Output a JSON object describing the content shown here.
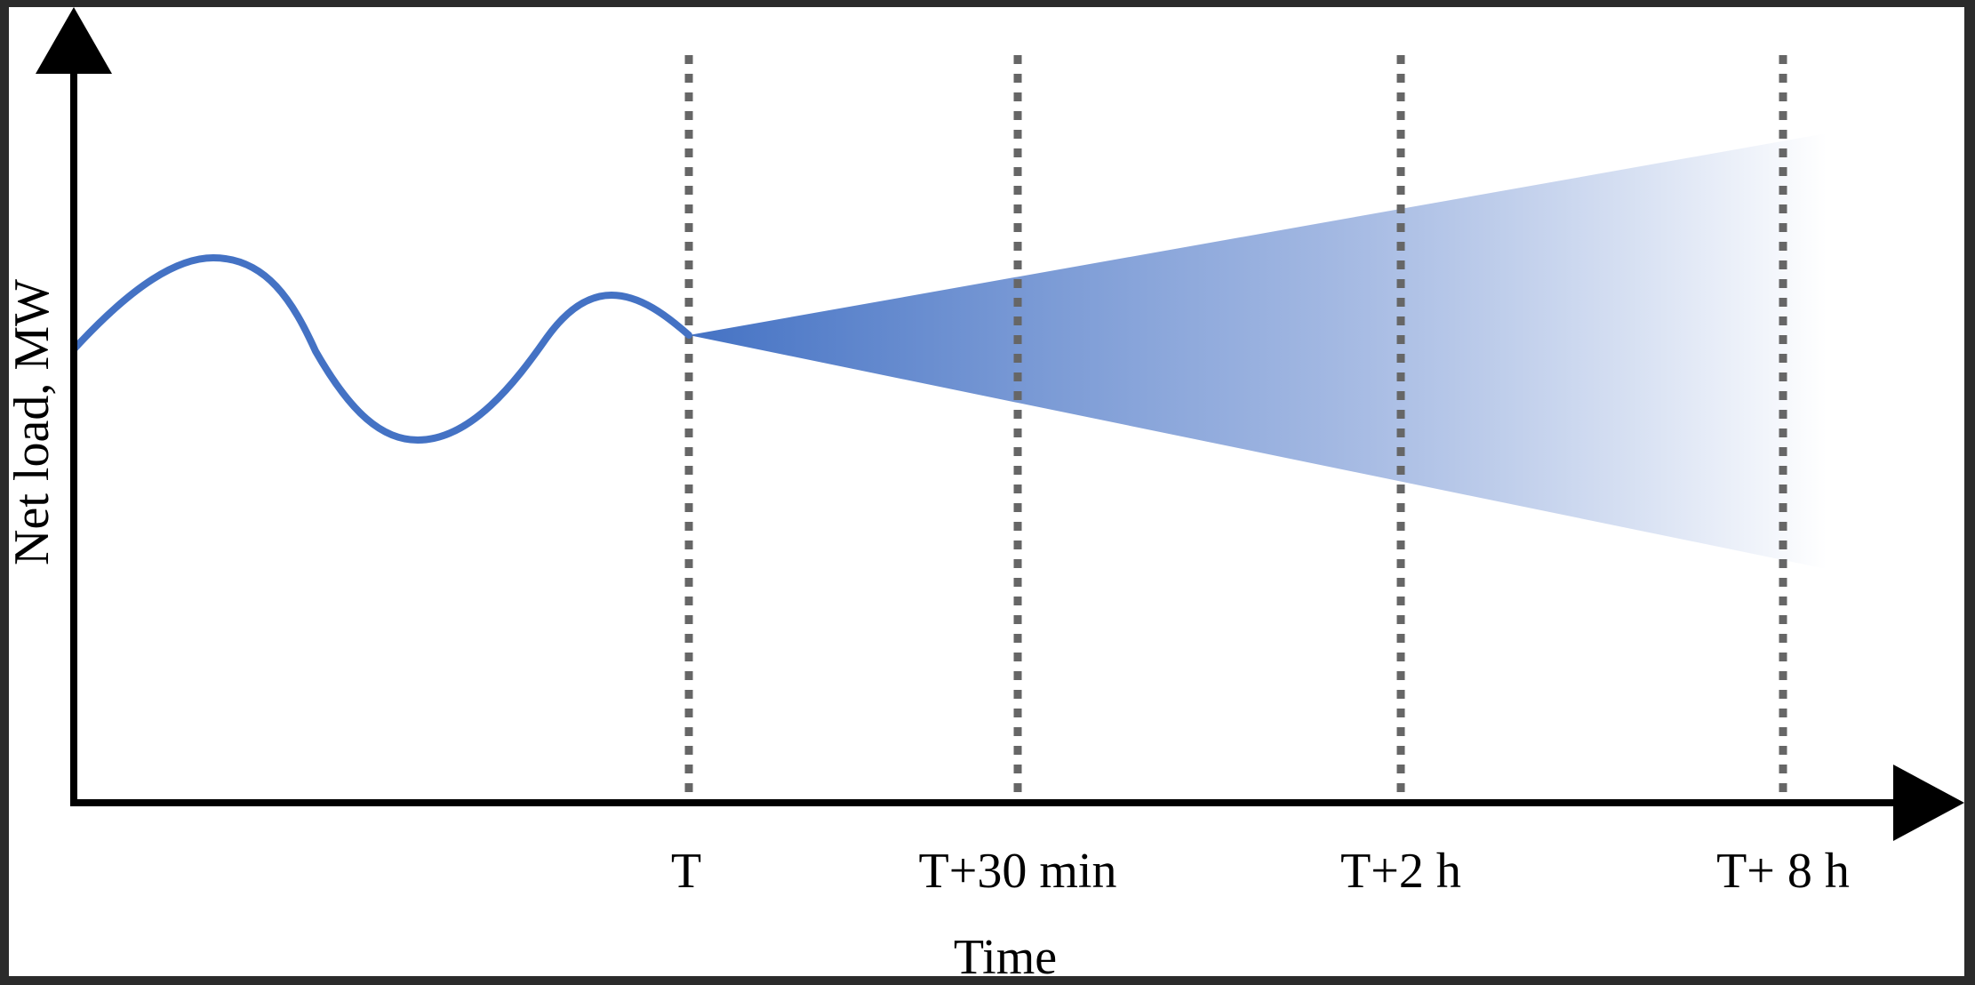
{
  "diagram": {
    "y_axis_label": "Net load, MW",
    "x_axis_label": "Time",
    "time_markers": [
      {
        "id": "t",
        "label": "T"
      },
      {
        "id": "t-30min",
        "label": "T+30 min"
      },
      {
        "id": "t-2h",
        "label": "T+2 h"
      },
      {
        "id": "t-8h",
        "label": "T+ 8 h"
      }
    ],
    "colors": {
      "background": "#ffffff",
      "frame": "#2b2b2b",
      "axis": "#000000",
      "load_curve": "#4472c4",
      "forecast_cone_start": "#4472c4",
      "forecast_cone_end": "#ffffff",
      "marker_line": "#666666"
    }
  }
}
